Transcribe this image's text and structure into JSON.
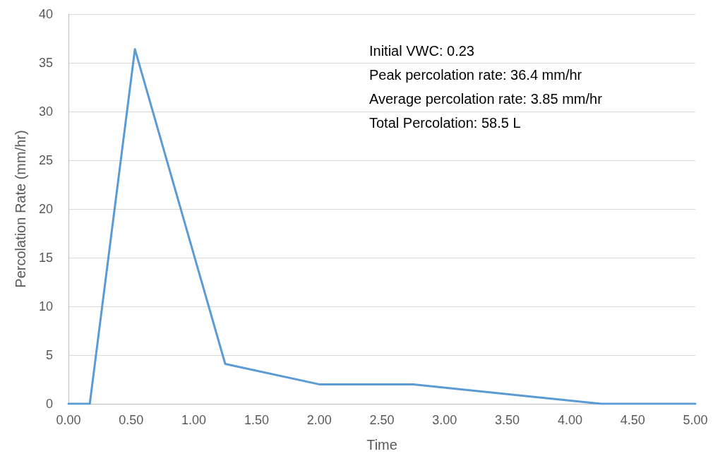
{
  "chart_data": {
    "type": "line",
    "xlabel": "Time",
    "ylabel": "Percolation Rate (mm/hr)",
    "x": [
      0,
      0.17,
      0.53,
      1.25,
      2.0,
      2.75,
      4.25,
      5.0
    ],
    "series": [
      {
        "color": "#5b9bd5",
        "values": [
          0,
          0,
          36.4,
          4.1,
          2.0,
          2.0,
          0,
          0
        ]
      }
    ],
    "xlim": [
      0,
      5
    ],
    "xticks": [
      {
        "value": 0,
        "label": "0.00"
      },
      {
        "value": 0.5,
        "label": "0.50"
      },
      {
        "value": 1,
        "label": "1.00"
      },
      {
        "value": 1.5,
        "label": "1.50"
      },
      {
        "value": 2,
        "label": "2.00"
      },
      {
        "value": 2.5,
        "label": "2.50"
      },
      {
        "value": 3,
        "label": "3.00"
      },
      {
        "value": 3.5,
        "label": "3.50"
      },
      {
        "value": 4,
        "label": "4.00"
      },
      {
        "value": 4.5,
        "label": "4.50"
      },
      {
        "value": 5,
        "label": "5.00"
      }
    ],
    "ylim": [
      0,
      40
    ],
    "yticks": [
      0,
      5,
      10,
      15,
      20,
      25,
      30,
      35,
      40
    ],
    "grid": "y",
    "marker": "none",
    "line_style": "solid",
    "annotations": [
      "Initial VWC: 0.23",
      "Peak percolation rate: 36.4 mm/hr",
      "Average percolation rate: 3.85 mm/hr",
      "Total Percolation: 58.5 L"
    ]
  }
}
